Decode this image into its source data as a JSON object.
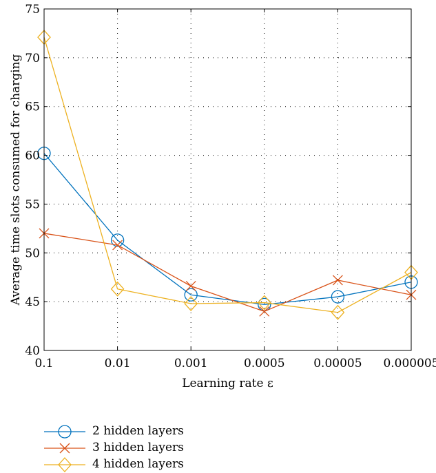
{
  "chart_data": {
    "type": "line",
    "title": "",
    "xlabel": "Learning rate ε",
    "ylabel": "Average time slots consumed for charging",
    "categories": [
      "0.1",
      "0.01",
      "0.001",
      "0.0005",
      "0.00005",
      "0.000005"
    ],
    "ylim": [
      40,
      75
    ],
    "yticks": [
      40,
      45,
      50,
      55,
      60,
      65,
      70,
      75
    ],
    "grid": true,
    "legend_position": "bottom",
    "series": [
      {
        "name": "2 hidden layers",
        "marker": "circle",
        "color": "#0072BD",
        "values": [
          60.2,
          51.3,
          45.7,
          44.7,
          45.5,
          47.0
        ]
      },
      {
        "name": "3 hidden layers",
        "marker": "x",
        "color": "#D95319",
        "values": [
          52.0,
          50.8,
          46.6,
          44.0,
          47.2,
          45.7
        ]
      },
      {
        "name": "4 hidden layers",
        "marker": "diamond",
        "color": "#EDB120",
        "values": [
          72.1,
          46.3,
          44.8,
          44.9,
          43.9,
          48.0
        ]
      }
    ]
  }
}
